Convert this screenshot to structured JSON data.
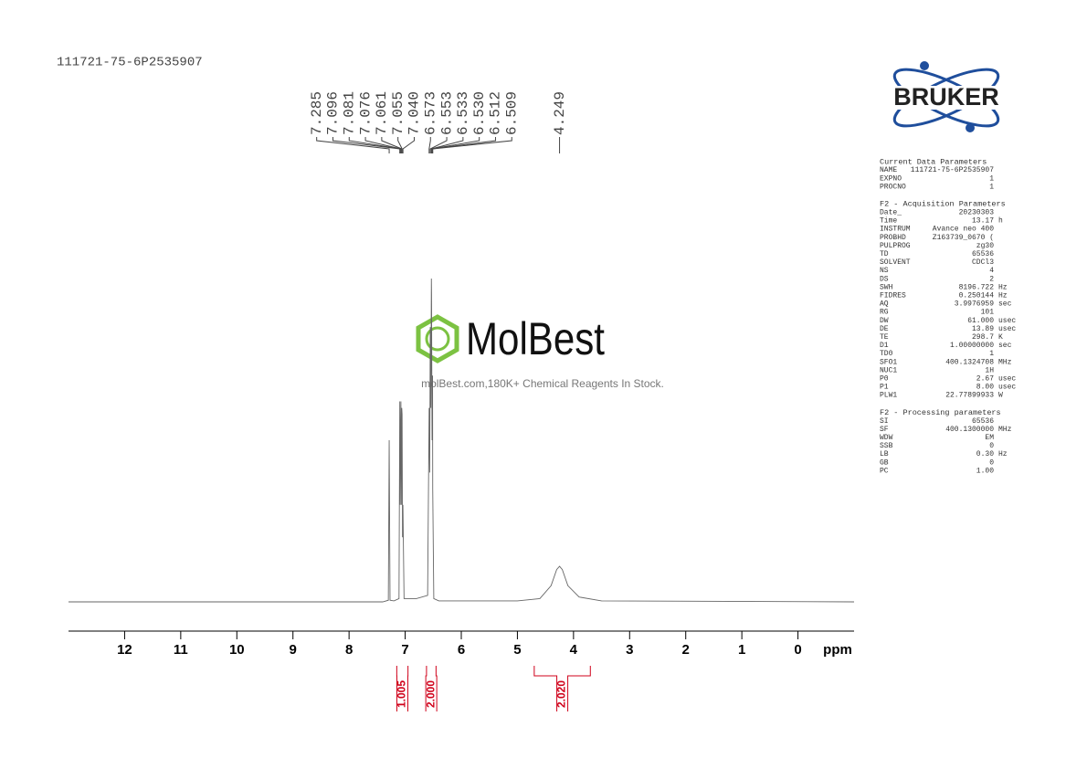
{
  "header": {
    "sample_id": "111721-75-6P2535907"
  },
  "logo": {
    "brand": "BRUKER"
  },
  "watermark": {
    "brand": "MolBest",
    "tagline": "molBest.com,180K+ Chemical Reagents In Stock."
  },
  "chart_data": {
    "type": "line",
    "x": [
      13,
      7.4,
      7.3,
      7.285,
      7.27,
      7.2,
      7.11,
      7.096,
      7.088,
      7.081,
      7.076,
      7.068,
      7.061,
      7.055,
      7.048,
      7.04,
      7.02,
      6.8,
      6.6,
      6.573,
      6.563,
      6.553,
      6.543,
      6.533,
      6.53,
      6.521,
      6.512,
      6.509,
      6.49,
      6.4,
      5,
      4.6,
      4.4,
      4.3,
      4.249,
      4.2,
      4.1,
      3.9,
      3.5,
      -1
    ],
    "values": [
      0,
      0,
      0.5,
      50,
      0.5,
      0.3,
      1,
      62,
      30,
      55,
      62,
      30,
      60,
      58,
      20,
      30,
      1,
      1,
      2,
      60,
      40,
      85,
      60,
      100,
      95,
      50,
      70,
      35,
      1,
      0.3,
      0.3,
      1,
      5,
      10,
      11,
      10,
      5,
      1.5,
      0.3,
      0
    ],
    "color": "#666666",
    "xlim": [
      13,
      -1
    ],
    "ylim": [
      0,
      100
    ],
    "xticks": [
      12,
      11,
      10,
      9,
      8,
      7,
      6,
      5,
      4,
      3,
      2,
      1,
      0
    ],
    "x_label": "ppm",
    "peaks": {
      "values": [
        7.285,
        7.096,
        7.081,
        7.076,
        7.061,
        7.055,
        7.04,
        6.573,
        6.553,
        6.533,
        6.53,
        6.512,
        6.509,
        4.249
      ],
      "value_labels": [
        "7.285",
        "7.096",
        "7.081",
        "7.076",
        "7.061",
        "7.055",
        "7.040",
        "6.573",
        "6.553",
        "6.533",
        "6.530",
        "6.512",
        "6.509",
        "4.249"
      ]
    },
    "integrals": {
      "values": [
        1.005,
        2,
        2.02
      ],
      "value_labels": [
        "1.005",
        "2.000",
        "2.020"
      ],
      "ranges": [
        [
          7.15,
          6.95
        ],
        [
          6.62,
          6.45
        ],
        [
          4.7,
          3.7
        ]
      ],
      "color": "#d0021b"
    }
  },
  "parameters": [
    {
      "title": "Current Data Parameters",
      "rows": [
        [
          "NAME",
          "111721-75-6P2535907"
        ],
        [
          "EXPNO",
          "1"
        ],
        [
          "PROCNO",
          "1"
        ]
      ]
    },
    {
      "title": "F2 - Acquisition Parameters",
      "rows": [
        [
          "Date_",
          "20230303"
        ],
        [
          "Time",
          "13.17",
          "h"
        ],
        [
          "INSTRUM",
          "Avance neo 400"
        ],
        [
          "PROBHD",
          "Z163739_0670 ("
        ],
        [
          "PULPROG",
          "zg30"
        ],
        [
          "TD",
          "65536"
        ],
        [
          "SOLVENT",
          "CDCl3"
        ],
        [
          "NS",
          "4"
        ],
        [
          "DS",
          "2"
        ],
        [
          "SWH",
          "8196.722",
          "Hz"
        ],
        [
          "FIDRES",
          "0.250144",
          "Hz"
        ],
        [
          "AQ",
          "3.9976959",
          "sec"
        ],
        [
          "RG",
          "101"
        ],
        [
          "DW",
          "61.000",
          "usec"
        ],
        [
          "DE",
          "13.89",
          "usec"
        ],
        [
          "TE",
          "298.7",
          "K"
        ],
        [
          "D1",
          "1.00000000",
          "sec"
        ],
        [
          "TD0",
          "1"
        ],
        [
          "SFO1",
          "400.1324708",
          "MHz"
        ],
        [
          "NUC1",
          "1H"
        ],
        [
          "P0",
          "2.67",
          "usec"
        ],
        [
          "P1",
          "8.00",
          "usec"
        ],
        [
          "PLW1",
          "22.77899933",
          "W"
        ]
      ]
    },
    {
      "title": "F2 - Processing parameters",
      "rows": [
        [
          "SI",
          "65536"
        ],
        [
          "SF",
          "400.1300000",
          "MHz"
        ],
        [
          "WDW",
          "EM"
        ],
        [
          "SSB",
          "0"
        ],
        [
          "LB",
          "0.30",
          "Hz"
        ],
        [
          "GB",
          "0"
        ],
        [
          "PC",
          "1.00"
        ]
      ]
    }
  ]
}
